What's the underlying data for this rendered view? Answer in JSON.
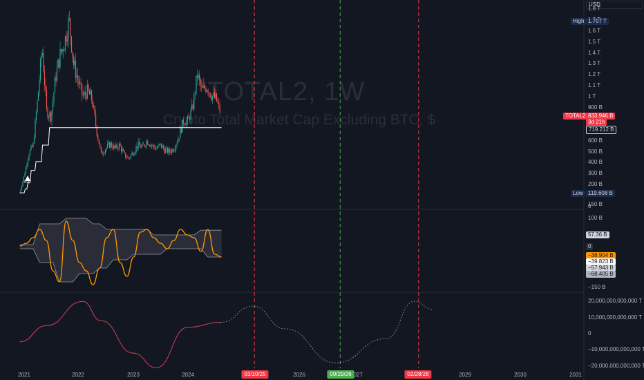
{
  "watermark": {
    "title": "TOTAL2, 1W",
    "subtitle": "Crypto Total Market Cap Excluding BTC, $"
  },
  "currency": "USD",
  "markers": {
    "high_label": "High",
    "high_value": "1.707 T",
    "low_label": "Low",
    "low_value": "119.608 B",
    "buy": "Buy"
  },
  "price_labels": {
    "symbol": "TOTAL2",
    "last": "833.946 B",
    "change": "3d 21h",
    "level": "719.212 B"
  },
  "osc_labels": [
    "57.36 B",
    "0",
    "−38.904 B",
    "−39.823 B",
    "−57.943 B",
    "−68.405 B"
  ],
  "date_boxes": [
    {
      "text": "03/10/25",
      "color": "#f23645"
    },
    {
      "text": "09/29/26",
      "color": "#4caf50"
    },
    {
      "text": "02/28/28",
      "color": "#f23645"
    }
  ],
  "colors": {
    "bg": "#131722",
    "up": "#26a69a",
    "down": "#ef5350",
    "osc": "#ff9800",
    "cycle": "#d0425a",
    "level_line": "#ffffff",
    "red_dash": "#f23645",
    "green_dash": "#4caf50"
  },
  "chart_data": [
    {
      "type": "candlestick",
      "title": "TOTAL2, 1W",
      "subtitle": "Crypto Total Market Cap Excluding BTC, $",
      "x_ticks": [
        "2021",
        "2022",
        "2023",
        "2024",
        "2026",
        "2027",
        "2029",
        "2030",
        "2031"
      ],
      "y_ticks": [
        "1.8 T",
        "1.7 T",
        "1.6 T",
        "1.5 T",
        "1.4 T",
        "1.3 T",
        "1.2 T",
        "1.1 T",
        "1 T",
        "900 B",
        "800 B",
        "700 B",
        "600 B",
        "500 B",
        "400 B",
        "300 B",
        "200 B",
        "100 B",
        "0"
      ],
      "ylim": [
        0,
        1800
      ],
      "y_units": "B USD",
      "approx_closes": [
        [
          "2020-12",
          125
        ],
        [
          "2021-01",
          280
        ],
        [
          "2021-02",
          480
        ],
        [
          "2021-03",
          560
        ],
        [
          "2021-04",
          980
        ],
        [
          "2021-05",
          1450
        ],
        [
          "2021-06",
          870
        ],
        [
          "2021-07",
          820
        ],
        [
          "2021-08",
          1180
        ],
        [
          "2021-09",
          1380
        ],
        [
          "2021-10",
          1500
        ],
        [
          "2021-11",
          1700
        ],
        [
          "2021-12",
          1300
        ],
        [
          "2022-01",
          1150
        ],
        [
          "2022-02",
          1000
        ],
        [
          "2022-03",
          1050
        ],
        [
          "2022-04",
          980
        ],
        [
          "2022-05",
          700
        ],
        [
          "2022-06",
          480
        ],
        [
          "2022-07",
          530
        ],
        [
          "2022-08",
          570
        ],
        [
          "2022-09",
          530
        ],
        [
          "2022-10",
          560
        ],
        [
          "2022-11",
          470
        ],
        [
          "2022-12",
          440
        ],
        [
          "2023-01",
          500
        ],
        [
          "2023-02",
          560
        ],
        [
          "2023-03",
          540
        ],
        [
          "2023-04",
          600
        ],
        [
          "2023-05",
          560
        ],
        [
          "2023-06",
          530
        ],
        [
          "2023-07",
          560
        ],
        [
          "2023-08",
          510
        ],
        [
          "2023-09",
          500
        ],
        [
          "2023-10",
          540
        ],
        [
          "2023-11",
          640
        ],
        [
          "2023-12",
          780
        ],
        [
          "2024-01",
          780
        ],
        [
          "2024-02",
          900
        ],
        [
          "2024-03",
          1200
        ],
        [
          "2024-04",
          1050
        ],
        [
          "2024-05",
          1100
        ],
        [
          "2024-06",
          1020
        ],
        [
          "2024-07",
          980
        ],
        [
          "2024-08",
          850
        ]
      ],
      "level_line_value": 719.212,
      "high": 1707,
      "low": 119.608,
      "last": 833.946
    },
    {
      "type": "line",
      "name_hidden": true,
      "y_ticks": [
        "150 B",
        "100 B",
        "0",
        "−150 B"
      ],
      "ylim": [
        -150,
        150
      ],
      "y_units": "B",
      "series": [
        {
          "color": "#ff9800",
          "values": [
            0,
            10,
            30,
            60,
            20,
            -90,
            -130,
            90,
            20,
            -60,
            -90,
            -140,
            -80,
            30,
            60,
            -60,
            -110,
            -40,
            50,
            60,
            30,
            10,
            -10,
            20,
            60,
            40,
            30,
            -20,
            60,
            -30,
            -40
          ]
        },
        {
          "color": "#9598a1",
          "values": [
            5,
            5,
            5,
            80,
            80,
            80,
            80,
            100,
            100,
            100,
            100,
            80,
            80,
            60,
            60,
            60,
            60,
            60,
            60,
            60,
            40,
            40,
            40,
            40,
            40,
            40,
            40,
            57,
            57,
            57,
            57
          ]
        },
        {
          "color": "#9598a1",
          "values": [
            -10,
            -10,
            -10,
            -60,
            -60,
            -60,
            -130,
            -130,
            -130,
            -100,
            -100,
            -100,
            -80,
            -80,
            -50,
            -50,
            -50,
            -30,
            -30,
            -30,
            -30,
            -30,
            -10,
            -10,
            -10,
            -10,
            -10,
            -10,
            -40,
            -40,
            -40
          ]
        }
      ]
    },
    {
      "type": "line",
      "y_ticks": [
        "20,000,000,000,000 T",
        "10,000,000,000,000 T",
        "0",
        "−10,000,000,000,000 T",
        "−20,000,000,000,000 T"
      ],
      "ylim": [
        -20000000000000,
        20000000000000
      ],
      "series": [
        {
          "style": "solid",
          "x": [
            "2020-12",
            "2021-06",
            "2022-02",
            "2022-06",
            "2023-01",
            "2023-06",
            "2024-01",
            "2024-08"
          ],
          "values": [
            -5000000000000.0,
            5000000000000.0,
            20000000000000.0,
            8000000000000.0,
            -12000000000000.0,
            -21000000000000.0,
            4000000000000.0,
            7000000000000.0
          ]
        },
        {
          "style": "dotted",
          "x": [
            "2024-08",
            "2025-03",
            "2025-10",
            "2026-09",
            "2027-08",
            "2028-02",
            "2028-06"
          ],
          "values": [
            7000000000000.0,
            17000000000000.0,
            3000000000000.0,
            -18000000000000.0,
            -3000000000000.0,
            20000000000000.0,
            15000000000000.0
          ]
        }
      ]
    }
  ]
}
